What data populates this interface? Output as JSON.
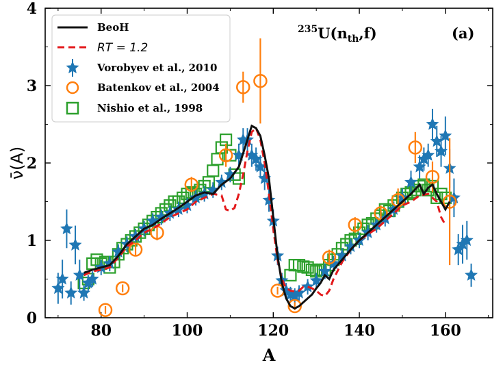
{
  "chart_data": {
    "type": "line",
    "title": "",
    "xlabel": "A",
    "ylabel": "ν̄(A)",
    "xlim": [
      67,
      171
    ],
    "ylim": [
      0,
      4
    ],
    "xticks": [
      80,
      100,
      120,
      140,
      160
    ],
    "yticks": [
      0,
      1,
      2,
      3,
      4
    ],
    "colors": {
      "beoh": "#111111",
      "rt": "#e31a1c",
      "vorobyev": "#1f77b4",
      "batenkov": "#ff7f0e",
      "nishio": "#2ca02c"
    },
    "annotation_reaction": {
      "pre": "235",
      "main": "U(n",
      "sub": "th",
      "post": ",f)"
    },
    "annotation_panel": "(a)",
    "legend": {
      "position": "top-left",
      "entries": [
        {
          "label": "BeoH",
          "style": "solid-line",
          "color": "#111111"
        },
        {
          "label": "R_T = 1.2",
          "text_display": "RT = 1.2",
          "style": "dashed-line",
          "color": "#e31a1c"
        },
        {
          "label": "Vorobyev et al., 2010",
          "style": "star",
          "color": "#1f77b4"
        },
        {
          "label": "Batenkov et al., 2004",
          "style": "circle",
          "color": "#ff7f0e"
        },
        {
          "label": "Nishio et al., 1998",
          "style": "square",
          "color": "#2ca02c"
        }
      ]
    },
    "series": [
      {
        "name": "BeoH",
        "type": "line",
        "x": [
          76,
          78,
          80,
          82,
          84,
          86,
          88,
          90,
          92,
          94,
          96,
          98,
          100,
          102,
          104,
          106,
          108,
          110,
          112,
          114,
          115,
          116,
          117,
          118,
          119,
          120,
          121,
          122,
          123,
          124,
          125,
          126,
          127,
          128,
          129,
          130,
          131,
          132,
          133,
          134,
          136,
          138,
          140,
          142,
          144,
          146,
          148,
          150,
          152,
          154,
          155,
          156,
          157,
          158,
          159,
          160,
          161
        ],
        "y": [
          0.58,
          0.62,
          0.65,
          0.68,
          0.8,
          0.95,
          1.05,
          1.15,
          1.2,
          1.28,
          1.35,
          1.42,
          1.5,
          1.58,
          1.62,
          1.6,
          1.72,
          1.8,
          1.95,
          2.3,
          2.48,
          2.45,
          2.35,
          2.1,
          1.8,
          1.3,
          0.8,
          0.45,
          0.25,
          0.15,
          0.12,
          0.15,
          0.2,
          0.25,
          0.3,
          0.38,
          0.45,
          0.55,
          0.5,
          0.62,
          0.75,
          0.88,
          1.0,
          1.1,
          1.2,
          1.3,
          1.4,
          1.5,
          1.6,
          1.72,
          1.6,
          1.68,
          1.72,
          1.6,
          1.5,
          1.4,
          1.5
        ]
      },
      {
        "name": "R_T = 1.2",
        "type": "line",
        "x": [
          76,
          78,
          80,
          82,
          84,
          86,
          88,
          90,
          92,
          94,
          96,
          98,
          100,
          102,
          104,
          106,
          108,
          109,
          110,
          111,
          112,
          113,
          114,
          115,
          116,
          117,
          118,
          119,
          120,
          121,
          122,
          123,
          124,
          125,
          126,
          127,
          128,
          129,
          130,
          131,
          132,
          133,
          134,
          136,
          138,
          140,
          142,
          144,
          146,
          148,
          150,
          152,
          154,
          156,
          158,
          159,
          160
        ],
        "y": [
          0.55,
          0.6,
          0.62,
          0.65,
          0.78,
          0.92,
          1.0,
          1.1,
          1.15,
          1.22,
          1.3,
          1.35,
          1.4,
          1.5,
          1.55,
          1.6,
          1.58,
          1.4,
          1.38,
          1.42,
          1.6,
          1.85,
          2.15,
          2.4,
          2.45,
          2.3,
          2.0,
          1.6,
          1.15,
          0.75,
          0.5,
          0.38,
          0.35,
          0.34,
          0.35,
          0.4,
          0.4,
          0.38,
          0.35,
          0.3,
          0.28,
          0.35,
          0.5,
          0.72,
          0.88,
          1.0,
          1.08,
          1.15,
          1.25,
          1.35,
          1.45,
          1.5,
          1.58,
          1.6,
          1.5,
          1.3,
          1.2
        ]
      },
      {
        "name": "Vorobyev et al., 2010",
        "type": "scatter",
        "marker": "star",
        "x": [
          70,
          71,
          72,
          73,
          74,
          75,
          76,
          77,
          78,
          80,
          82,
          84,
          86,
          88,
          90,
          92,
          94,
          96,
          98,
          100,
          102,
          104,
          106,
          108,
          110,
          112,
          113,
          114,
          115,
          116,
          117,
          118,
          119,
          120,
          121,
          122,
          123,
          124,
          125,
          126,
          128,
          130,
          132,
          134,
          136,
          138,
          140,
          142,
          144,
          146,
          148,
          150,
          152,
          154,
          155,
          156,
          157,
          158,
          159,
          160,
          161,
          162,
          163,
          164,
          165,
          166
        ],
        "y": [
          0.38,
          0.5,
          1.15,
          0.32,
          0.94,
          0.55,
          0.32,
          0.45,
          0.5,
          0.65,
          0.7,
          0.85,
          0.95,
          1.05,
          1.15,
          1.25,
          1.3,
          1.35,
          1.4,
          1.45,
          1.55,
          1.6,
          1.65,
          1.75,
          1.85,
          2.1,
          2.3,
          2.3,
          2.1,
          2.05,
          1.95,
          1.8,
          1.52,
          1.25,
          0.8,
          0.48,
          0.35,
          0.3,
          0.28,
          0.32,
          0.4,
          0.48,
          0.6,
          0.7,
          0.8,
          0.92,
          1.0,
          1.1,
          1.2,
          1.28,
          1.4,
          1.55,
          1.75,
          1.95,
          2.05,
          2.1,
          2.5,
          2.28,
          2.15,
          2.35,
          1.93,
          1.55,
          0.88,
          0.95,
          1.0,
          0.55
        ],
        "err": [
          0.2,
          0.25,
          0.25,
          0.15,
          0.25,
          0.2,
          0.1,
          0.1,
          0.1,
          0.1,
          0.1,
          0.1,
          0.1,
          0.1,
          0.1,
          0.1,
          0.1,
          0.1,
          0.1,
          0.1,
          0.1,
          0.1,
          0.1,
          0.1,
          0.1,
          0.15,
          0.15,
          0.15,
          0.15,
          0.15,
          0.15,
          0.15,
          0.15,
          0.15,
          0.12,
          0.1,
          0.1,
          0.1,
          0.1,
          0.1,
          0.1,
          0.1,
          0.1,
          0.1,
          0.1,
          0.1,
          0.1,
          0.1,
          0.1,
          0.1,
          0.1,
          0.12,
          0.15,
          0.15,
          0.15,
          0.15,
          0.2,
          0.2,
          0.2,
          0.25,
          0.25,
          0.25,
          0.2,
          0.25,
          0.25,
          0.15
        ]
      },
      {
        "name": "Batenkov et al., 2004",
        "type": "scatter",
        "marker": "circle",
        "x": [
          81,
          85,
          88,
          93,
          101,
          109,
          113,
          117,
          121,
          125,
          133,
          139,
          145,
          149,
          153,
          157,
          161
        ],
        "y": [
          0.1,
          0.38,
          0.88,
          1.1,
          1.72,
          2.1,
          2.98,
          3.06,
          0.35,
          0.15,
          0.78,
          1.2,
          1.35,
          1.52,
          2.2,
          1.82,
          1.5
        ],
        "err": [
          0.05,
          0.05,
          0.08,
          0.1,
          0.1,
          0.15,
          0.2,
          0.55,
          0.05,
          0.05,
          0.1,
          0.1,
          0.1,
          0.15,
          0.2,
          0.2,
          0.82
        ]
      },
      {
        "name": "Nishio et al., 1998",
        "type": "scatter",
        "marker": "square",
        "x": [
          76,
          77,
          78,
          79,
          80,
          81,
          82,
          83,
          84,
          85,
          86,
          87,
          88,
          89,
          90,
          91,
          92,
          93,
          94,
          95,
          96,
          97,
          98,
          99,
          100,
          101,
          102,
          103,
          104,
          105,
          106,
          107,
          108,
          109,
          110,
          111,
          112,
          124,
          125,
          126,
          127,
          128,
          129,
          130,
          131,
          132,
          133,
          134,
          135,
          136,
          137,
          138,
          139,
          140,
          141,
          142,
          143,
          144,
          145,
          146,
          147,
          148,
          149,
          150,
          151,
          152,
          153,
          154,
          155,
          156,
          157,
          158,
          159,
          160
        ],
        "y": [
          0.45,
          0.5,
          0.7,
          0.75,
          0.7,
          0.72,
          0.65,
          0.72,
          0.82,
          0.9,
          0.95,
          1.0,
          1.05,
          1.1,
          1.15,
          1.2,
          1.25,
          1.3,
          1.35,
          1.4,
          1.45,
          1.5,
          1.5,
          1.55,
          1.6,
          1.62,
          1.6,
          1.65,
          1.7,
          1.75,
          1.9,
          2.05,
          2.2,
          2.3,
          2.1,
          1.85,
          1.8,
          0.55,
          0.68,
          0.68,
          0.66,
          0.65,
          0.62,
          0.6,
          0.62,
          0.62,
          0.68,
          0.75,
          0.82,
          0.9,
          0.95,
          1.0,
          1.02,
          1.1,
          1.15,
          1.2,
          1.22,
          1.28,
          1.32,
          1.4,
          1.38,
          1.45,
          1.5,
          1.55,
          1.6,
          1.62,
          1.65,
          1.7,
          1.72,
          1.65,
          1.7,
          1.55,
          1.6,
          1.55
        ]
      }
    ]
  }
}
